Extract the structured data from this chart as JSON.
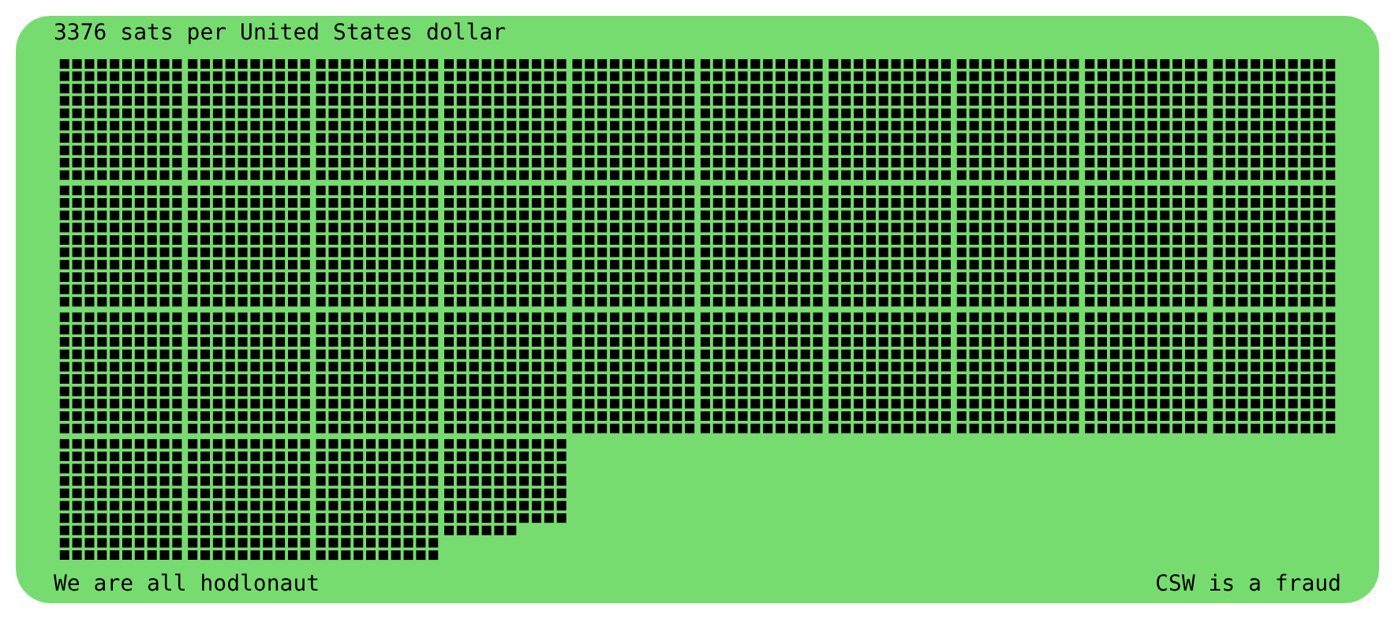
{
  "chart_data": {
    "type": "other",
    "title": "sats per United States dollar",
    "values": [
      3376
    ],
    "data_labels": true,
    "color": "#000000",
    "annotations": [
      "We are all hodlonaut",
      "CSW is a fraud"
    ]
  }
}
